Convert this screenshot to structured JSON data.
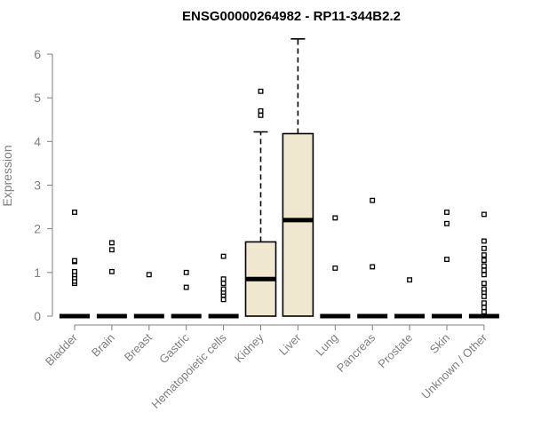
{
  "chart_data": {
    "type": "boxplot",
    "title": "ENSG00000264982 - RP11-344B2.2",
    "ylabel": "Expression",
    "ylim": [
      0,
      6
    ],
    "yticks": [
      0,
      1,
      2,
      3,
      4,
      5,
      6
    ],
    "categories": [
      "Bladder",
      "Brain",
      "Breast",
      "Gastric",
      "Hematopoietic cells",
      "Kidney",
      "Liver",
      "Lung",
      "Pancreas",
      "Prostate",
      "Skin",
      "Unknown / Other"
    ],
    "box_color": "#efe8cf",
    "boxes": [
      {
        "category": "Bladder",
        "min": 0,
        "q1": 0,
        "median": 0,
        "q3": 0,
        "max": 0,
        "outliers": [
          0.75,
          0.8,
          0.88,
          0.95,
          1.02,
          1.25,
          1.27,
          2.38
        ]
      },
      {
        "category": "Brain",
        "min": 0,
        "q1": 0,
        "median": 0,
        "q3": 0,
        "max": 0,
        "outliers": [
          1.02,
          1.52,
          1.68
        ]
      },
      {
        "category": "Breast",
        "min": 0,
        "q1": 0,
        "median": 0,
        "q3": 0,
        "max": 0,
        "outliers": [
          0.95
        ]
      },
      {
        "category": "Gastric",
        "min": 0,
        "q1": 0,
        "median": 0,
        "q3": 0,
        "max": 0,
        "outliers": [
          0.66,
          1.0
        ]
      },
      {
        "category": "Hematopoietic cells",
        "min": 0,
        "q1": 0,
        "median": 0,
        "q3": 0,
        "max": 0,
        "outliers": [
          0.38,
          0.48,
          0.55,
          0.62,
          0.75,
          0.85,
          1.37
        ]
      },
      {
        "category": "Kidney",
        "min": 0,
        "q1": 0,
        "median": 0.85,
        "q3": 1.7,
        "max": 4.22,
        "outliers": [
          4.6,
          4.7,
          5.15
        ]
      },
      {
        "category": "Liver",
        "min": 0,
        "q1": 0,
        "median": 2.2,
        "q3": 4.18,
        "max": 6.35,
        "outliers": []
      },
      {
        "category": "Lung",
        "min": 0,
        "q1": 0,
        "median": 0,
        "q3": 0,
        "max": 0,
        "outliers": [
          1.1,
          2.25
        ]
      },
      {
        "category": "Pancreas",
        "min": 0,
        "q1": 0,
        "median": 0,
        "q3": 0,
        "max": 0,
        "outliers": [
          1.13,
          2.65
        ]
      },
      {
        "category": "Prostate",
        "min": 0,
        "q1": 0,
        "median": 0,
        "q3": 0,
        "max": 0,
        "outliers": [
          0.83
        ]
      },
      {
        "category": "Skin",
        "min": 0,
        "q1": 0,
        "median": 0,
        "q3": 0,
        "max": 0,
        "outliers": [
          1.3,
          2.12,
          2.38
        ]
      },
      {
        "category": "Unknown / Other",
        "min": 0,
        "q1": 0,
        "median": 0,
        "q3": 0,
        "max": 0,
        "outliers": [
          0.1,
          0.2,
          0.3,
          0.45,
          0.55,
          0.62,
          0.75,
          0.95,
          1.05,
          1.15,
          1.28,
          1.4,
          1.55,
          1.72,
          2.33
        ]
      }
    ]
  }
}
